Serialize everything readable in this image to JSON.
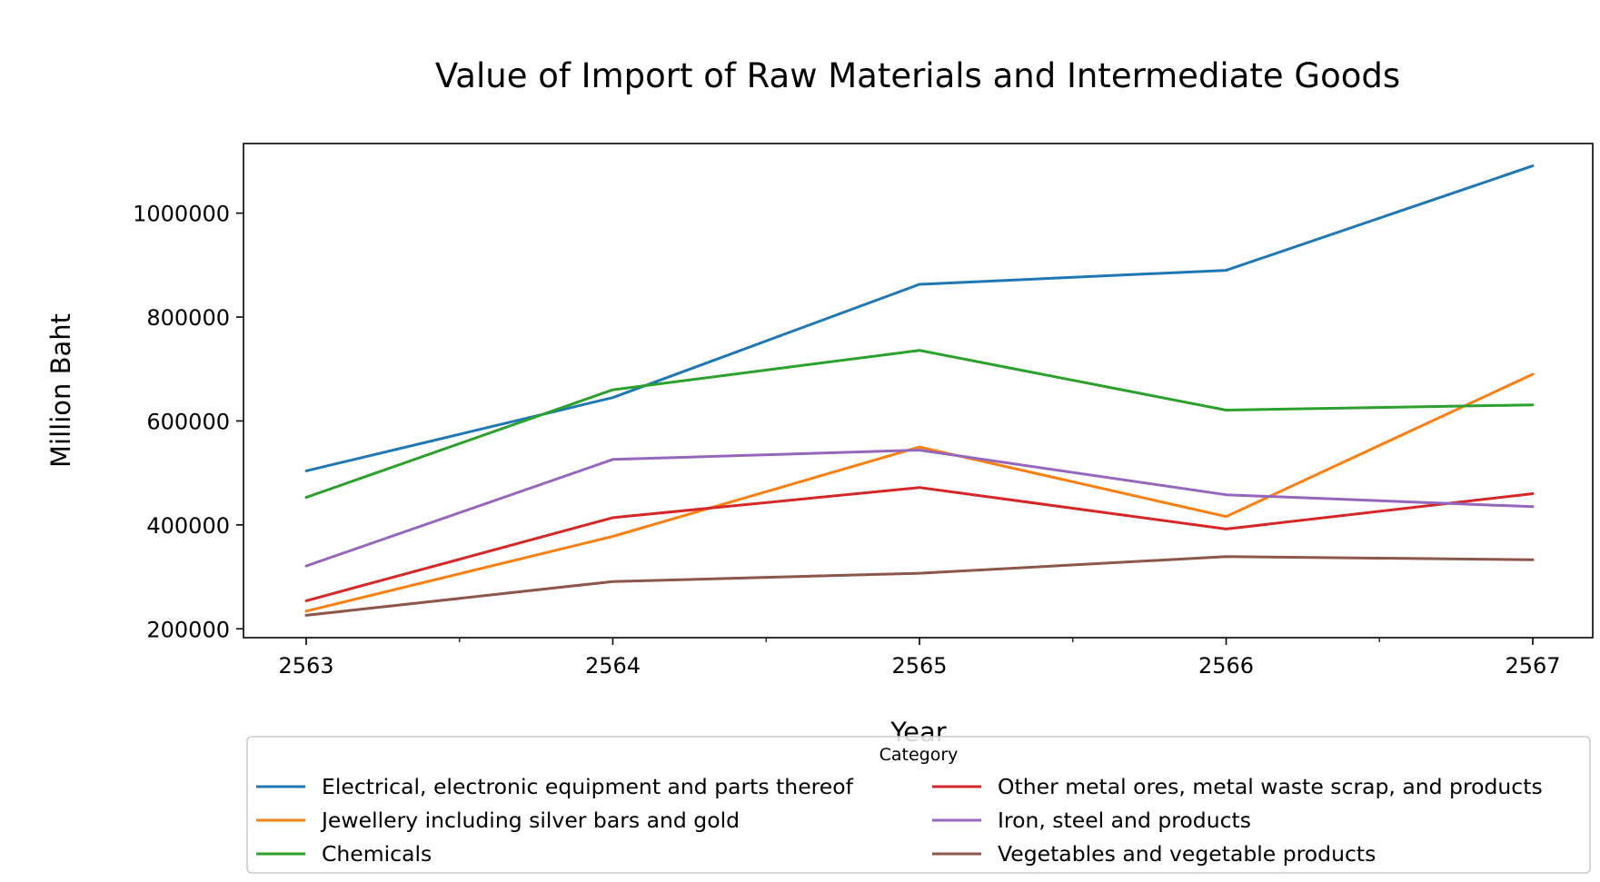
{
  "chart_data": {
    "type": "line",
    "title": "Value of Import of Raw Materials and Intermediate Goods",
    "xlabel": "Year",
    "ylabel": "Million Baht",
    "x": [
      "2563",
      "2564",
      "2565",
      "2566",
      "2567"
    ],
    "x_ticks": [
      "2563",
      "2564",
      "2565",
      "2566",
      "2567"
    ],
    "y_ticks": [
      "200000",
      "400000",
      "600000",
      "800000",
      "1000000"
    ],
    "ylim": [
      183000,
      1134000
    ],
    "grid": false,
    "legend": {
      "title": "Category",
      "placement": "bottom-center",
      "columns": 2
    },
    "series": [
      {
        "name": "Electrical, electronic equipment and parts thereof",
        "color": "#1f77b4",
        "values": [
          504000,
          645000,
          863000,
          890000,
          1091000
        ]
      },
      {
        "name": "Jewellery including silver bars and gold",
        "color": "#ff7f0e",
        "values": [
          234000,
          378000,
          550000,
          416000,
          690000
        ]
      },
      {
        "name": "Chemicals",
        "color": "#2ca02c",
        "values": [
          453000,
          660000,
          736000,
          621000,
          631000
        ]
      },
      {
        "name": "Other metal ores, metal waste scrap, and products",
        "color": "#d62728",
        "values": [
          254000,
          414000,
          472000,
          392000,
          460000
        ]
      },
      {
        "name": "Iron, steel and products",
        "color": "#9467bd",
        "values": [
          321000,
          526000,
          544000,
          458000,
          435000
        ]
      },
      {
        "name": "Vegetables and vegetable products",
        "color": "#8c564b",
        "values": [
          226000,
          291000,
          307000,
          339000,
          333000
        ]
      }
    ]
  }
}
